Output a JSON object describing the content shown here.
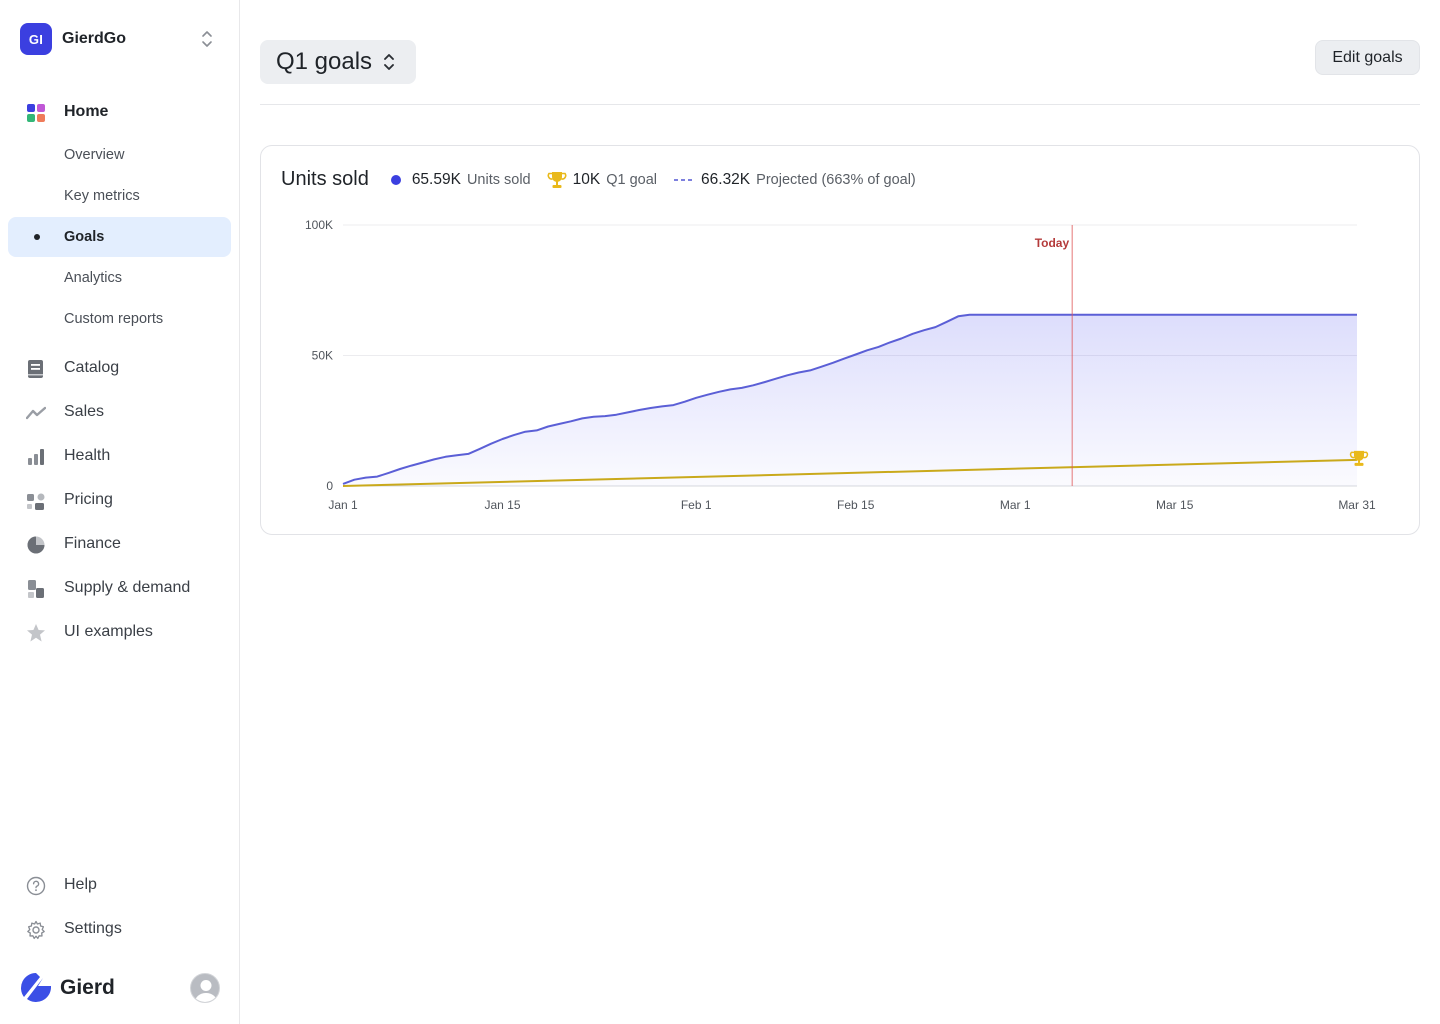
{
  "workspace": {
    "initials": "GI",
    "name": "GierdGo"
  },
  "nav": {
    "home": "Home",
    "sub": [
      {
        "label": "Overview",
        "active": false
      },
      {
        "label": "Key metrics",
        "active": false
      },
      {
        "label": "Goals",
        "active": true
      },
      {
        "label": "Analytics",
        "active": false
      },
      {
        "label": "Custom reports",
        "active": false
      }
    ],
    "items": [
      {
        "label": "Catalog",
        "icon": "book-icon"
      },
      {
        "label": "Sales",
        "icon": "trend-icon"
      },
      {
        "label": "Health",
        "icon": "bar-chart-icon"
      },
      {
        "label": "Pricing",
        "icon": "shapes-icon"
      },
      {
        "label": "Finance",
        "icon": "pie-icon"
      },
      {
        "label": "Supply & demand",
        "icon": "boxes-icon"
      },
      {
        "label": "UI examples",
        "icon": "star-icon"
      }
    ],
    "help": "Help",
    "settings": "Settings"
  },
  "brand": {
    "name": "Gierd"
  },
  "header": {
    "period": "Q1 goals",
    "edit_label": "Edit goals"
  },
  "legend": {
    "title": "Units sold",
    "units_value": "65.59K",
    "units_name": "Units sold",
    "goal_value": "10K",
    "goal_name": "Q1 goal",
    "proj_value": "66.32K",
    "proj_name": "Projected (663% of goal)"
  },
  "colors": {
    "accent": "#3b3fe0",
    "series": "#5b5fd6",
    "goal": "#c9a91b",
    "today": "#e05555",
    "active_bg": "#e3eefe"
  },
  "chart_data": {
    "type": "area",
    "title": "Units sold",
    "x_tick_labels": [
      "Jan 1",
      "Jan 15",
      "Feb 1",
      "Feb 15",
      "Mar 1",
      "Mar 15",
      "Mar 31"
    ],
    "x_tick_days": [
      0,
      14,
      31,
      45,
      59,
      73,
      89
    ],
    "y_tick_labels": [
      "0",
      "50K",
      "100K"
    ],
    "y_ticks": [
      0,
      50000,
      100000
    ],
    "ylim": [
      0,
      100000
    ],
    "today_label": "Today",
    "today_day": 64,
    "series": [
      {
        "name": "Units sold",
        "points": [
          [
            0,
            800
          ],
          [
            1,
            2400
          ],
          [
            2,
            3200
          ],
          [
            3,
            3600
          ],
          [
            4,
            5000
          ],
          [
            5,
            6500
          ],
          [
            6,
            7800
          ],
          [
            7,
            9000
          ],
          [
            8,
            10200
          ],
          [
            9,
            11200
          ],
          [
            10,
            11800
          ],
          [
            11,
            12300
          ],
          [
            12,
            14200
          ],
          [
            13,
            16200
          ],
          [
            14,
            18000
          ],
          [
            15,
            19500
          ],
          [
            16,
            20800
          ],
          [
            17,
            21300
          ],
          [
            18,
            22800
          ],
          [
            19,
            23800
          ],
          [
            20,
            24800
          ],
          [
            21,
            25900
          ],
          [
            22,
            26500
          ],
          [
            23,
            26800
          ],
          [
            24,
            27300
          ],
          [
            25,
            28200
          ],
          [
            26,
            29100
          ],
          [
            27,
            29900
          ],
          [
            28,
            30500
          ],
          [
            29,
            31000
          ],
          [
            30,
            32300
          ],
          [
            31,
            33800
          ],
          [
            32,
            35000
          ],
          [
            33,
            36100
          ],
          [
            34,
            37000
          ],
          [
            35,
            37600
          ],
          [
            36,
            38600
          ],
          [
            37,
            39800
          ],
          [
            38,
            41100
          ],
          [
            39,
            42400
          ],
          [
            40,
            43500
          ],
          [
            41,
            44300
          ],
          [
            42,
            45700
          ],
          [
            43,
            47200
          ],
          [
            44,
            48800
          ],
          [
            45,
            50400
          ],
          [
            46,
            52000
          ],
          [
            47,
            53300
          ],
          [
            48,
            55000
          ],
          [
            49,
            56500
          ],
          [
            50,
            58300
          ],
          [
            51,
            59700
          ],
          [
            52,
            60900
          ],
          [
            53,
            62900
          ],
          [
            54,
            65000
          ],
          [
            55,
            65590
          ],
          [
            64,
            65590
          ],
          [
            89,
            65590
          ]
        ]
      },
      {
        "name": "Q1 goal",
        "points": [
          [
            0,
            0
          ],
          [
            89,
            10000
          ]
        ]
      }
    ]
  }
}
